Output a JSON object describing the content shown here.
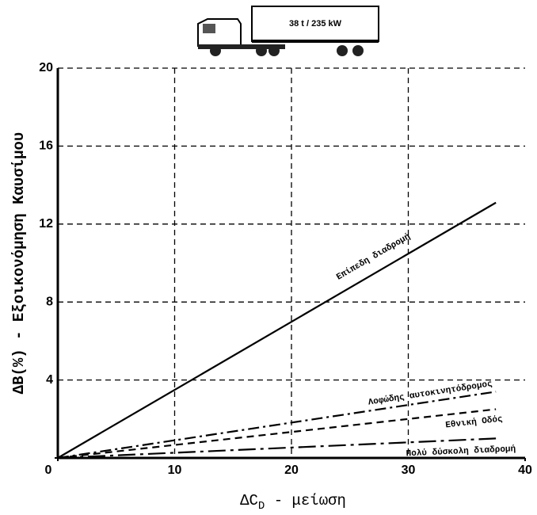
{
  "chart_data": {
    "type": "line",
    "annotation": "38 t / 235 kW",
    "ylabel": "ΔB(%) - Εξοικονόμηση Καυσίμου",
    "xlabel": [
      "ΔC",
      "D",
      " - μείωση"
    ],
    "x": [
      0,
      37.5
    ],
    "series": [
      {
        "name": "Επίπεδη διαδρομή",
        "color": "#000000",
        "style": "solid",
        "values": [
          0,
          13.1
        ]
      },
      {
        "name": "Λοφώδης αυτοκινητόδρομος",
        "color": "#000000",
        "style": "dashdot",
        "values": [
          0,
          3.4
        ]
      },
      {
        "name": "Εθνική Οδός",
        "color": "#000000",
        "style": "dashed",
        "values": [
          0,
          2.5
        ]
      },
      {
        "name": "Πολύ δύσκολη διαδρομή",
        "color": "#000000",
        "style": "longdashdot",
        "values": [
          0,
          1.0
        ]
      }
    ],
    "xlim": [
      0,
      40
    ],
    "xticks": [
      0,
      10,
      20,
      30,
      40
    ],
    "ylim": [
      0,
      20
    ],
    "yticks": [
      0,
      4,
      8,
      12,
      16,
      20
    ],
    "grid": true
  }
}
